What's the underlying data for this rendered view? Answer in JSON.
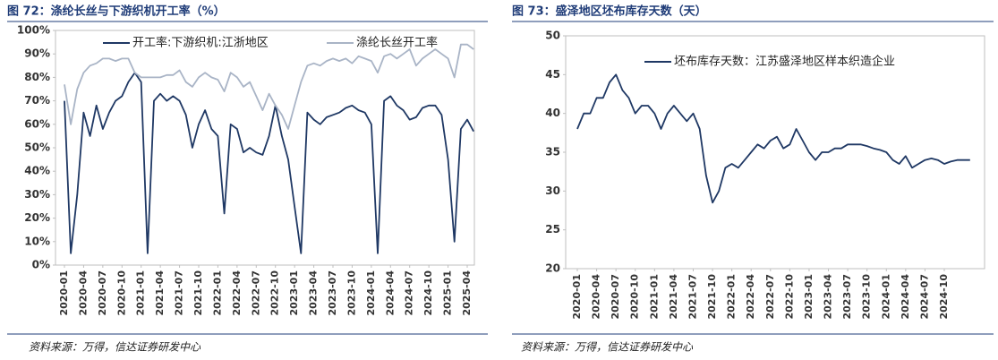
{
  "chart_data": [
    {
      "type": "line",
      "title": "图 72：涤纶长丝与下游织机开工率（%）",
      "source": "资料来源：万得，信达证券研发中心",
      "x": [
        "2020-01",
        "2020-02",
        "2020-03",
        "2020-04",
        "2020-05",
        "2020-06",
        "2020-07",
        "2020-08",
        "2020-09",
        "2020-10",
        "2020-11",
        "2020-12",
        "2021-01",
        "2021-02",
        "2021-03",
        "2021-04",
        "2021-05",
        "2021-06",
        "2021-07",
        "2021-08",
        "2021-09",
        "2021-10",
        "2021-11",
        "2021-12",
        "2022-01",
        "2022-02",
        "2022-03",
        "2022-04",
        "2022-05",
        "2022-06",
        "2022-07",
        "2022-08",
        "2022-09",
        "2022-10",
        "2022-11",
        "2022-12",
        "2023-01",
        "2023-02",
        "2023-03",
        "2023-04",
        "2023-05",
        "2023-06",
        "2023-07",
        "2023-08",
        "2023-09",
        "2023-10",
        "2023-11",
        "2023-12",
        "2024-01",
        "2024-02",
        "2024-03",
        "2024-04",
        "2024-05",
        "2024-06",
        "2024-07",
        "2024-08",
        "2024-09",
        "2024-10",
        "2024-11",
        "2024-12",
        "2025-01",
        "2025-02",
        "2025-03",
        "2025-04",
        "2025-05"
      ],
      "series": [
        {
          "name": "开工率:下游织机:江浙地区",
          "color": "#1f3864",
          "values": [
            70,
            5,
            30,
            65,
            55,
            68,
            58,
            65,
            70,
            72,
            78,
            82,
            78,
            5,
            70,
            73,
            70,
            72,
            70,
            64,
            50,
            60,
            66,
            58,
            55,
            22,
            60,
            58,
            48,
            50,
            48,
            47,
            55,
            68,
            55,
            45,
            25,
            5,
            65,
            62,
            60,
            63,
            64,
            65,
            67,
            68,
            66,
            65,
            60,
            5,
            70,
            72,
            68,
            66,
            62,
            63,
            67,
            68,
            68,
            64,
            45,
            10,
            58,
            62,
            57
          ]
        },
        {
          "name": "涤纶长丝开工率",
          "color": "#a9b4c6",
          "values": [
            77,
            60,
            75,
            82,
            85,
            86,
            88,
            88,
            87,
            88,
            88,
            82,
            80,
            80,
            80,
            80,
            81,
            81,
            83,
            78,
            76,
            80,
            82,
            80,
            79,
            74,
            82,
            80,
            76,
            78,
            72,
            66,
            73,
            68,
            64,
            58,
            68,
            78,
            85,
            86,
            85,
            87,
            88,
            87,
            88,
            86,
            89,
            88,
            87,
            82,
            89,
            90,
            88,
            90,
            92,
            85,
            88,
            90,
            92,
            90,
            88,
            80,
            94,
            94,
            92
          ]
        }
      ],
      "xticks": [
        "2020-01",
        "2020-04",
        "2020-07",
        "2020-10",
        "2021-01",
        "2021-04",
        "2021-07",
        "2021-10",
        "2022-01",
        "2022-04",
        "2022-07",
        "2022-10",
        "2023-01",
        "2023-04",
        "2023-07",
        "2023-10",
        "2024-01",
        "2024-04",
        "2024-07",
        "2024-10",
        "2025-01",
        "2025-04"
      ],
      "ylim": [
        0,
        100
      ],
      "yticks": [
        {
          "value": 0,
          "label": "0%"
        },
        {
          "value": 10,
          "label": "10%"
        },
        {
          "value": 20,
          "label": "20%"
        },
        {
          "value": 30,
          "label": "30%"
        },
        {
          "value": 40,
          "label": "40%"
        },
        {
          "value": 50,
          "label": "50%"
        },
        {
          "value": 60,
          "label": "60%"
        },
        {
          "value": 70,
          "label": "70%"
        },
        {
          "value": 80,
          "label": "80%"
        },
        {
          "value": 90,
          "label": "90%"
        },
        {
          "value": 100,
          "label": "100%"
        }
      ],
      "legend": "top"
    },
    {
      "type": "line",
      "title": "图 73：盛泽地区坯布库存天数（天）",
      "source": "资料来源：万得，信达证券研发中心",
      "x": [
        "2020-01",
        "2020-02",
        "2020-03",
        "2020-04",
        "2020-05",
        "2020-06",
        "2020-07",
        "2020-08",
        "2020-09",
        "2020-10",
        "2020-11",
        "2020-12",
        "2021-01",
        "2021-02",
        "2021-03",
        "2021-04",
        "2021-05",
        "2021-06",
        "2021-07",
        "2021-08",
        "2021-09",
        "2021-10",
        "2021-11",
        "2021-12",
        "2022-01",
        "2022-02",
        "2022-03",
        "2022-04",
        "2022-05",
        "2022-06",
        "2022-07",
        "2022-08",
        "2022-09",
        "2022-10",
        "2022-11",
        "2022-12",
        "2023-01",
        "2023-02",
        "2023-03",
        "2023-04",
        "2023-05",
        "2023-06",
        "2023-07",
        "2023-08",
        "2023-09",
        "2023-10",
        "2023-11",
        "2023-12",
        "2024-01",
        "2024-02",
        "2024-03",
        "2024-04",
        "2024-05",
        "2024-06",
        "2024-07",
        "2024-08",
        "2024-09",
        "2024-10",
        "2024-11",
        "2024-12",
        "2025-01",
        "2025-02"
      ],
      "series": [
        {
          "name": "坯布库存天数：江苏盛泽地区样本织造企业",
          "color": "#1f3864",
          "values": [
            38,
            40,
            40,
            42,
            42,
            44,
            45,
            43,
            42,
            40,
            41,
            41,
            40,
            38,
            40,
            41,
            40,
            39,
            40,
            38,
            32,
            28.5,
            30,
            33,
            33.5,
            33,
            34,
            35,
            36,
            35.5,
            36.5,
            37,
            35.5,
            36,
            38,
            36.5,
            35,
            34,
            35,
            35,
            35.5,
            35.5,
            36,
            36,
            36,
            35.8,
            35.5,
            35.3,
            35,
            34,
            33.5,
            34.5,
            33,
            33.5,
            34,
            34.2,
            34,
            33.5,
            33.8,
            34,
            34,
            34
          ]
        }
      ],
      "xticks": [
        "2020-01",
        "2020-04",
        "2020-07",
        "2020-10",
        "2021-01",
        "2021-04",
        "2021-07",
        "2021-10",
        "2022-01",
        "2022-04",
        "2022-07",
        "2022-10",
        "2023-01",
        "2023-04",
        "2023-07",
        "2023-10",
        "2024-01",
        "2024-04",
        "2024-07",
        "2024-10"
      ],
      "ylim": [
        20,
        50
      ],
      "yticks": [
        20,
        25,
        30,
        35,
        40,
        45,
        50
      ],
      "legend": "top"
    }
  ]
}
